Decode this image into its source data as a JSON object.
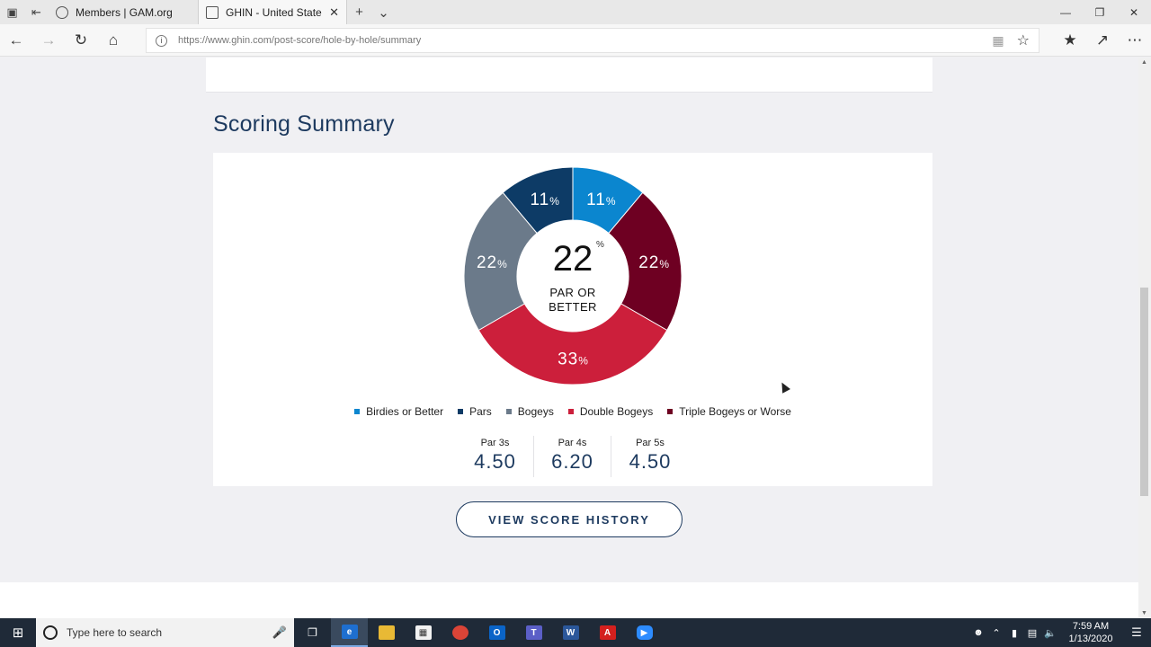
{
  "browser": {
    "tabs": [
      {
        "title": "Members | GAM.org",
        "active": false
      },
      {
        "title": "GHIN - United States Gc",
        "active": true
      }
    ],
    "url": "https://www.ghin.com/post-score/hole-by-hole/summary"
  },
  "page": {
    "section_title": "Scoring Summary",
    "center_value": "22",
    "center_unit": "%",
    "center_label": "PAR OR BETTER",
    "history_button": "VIEW SCORE HISTORY",
    "par_stats": [
      {
        "label": "Par 3s",
        "value": "4.50"
      },
      {
        "label": "Par 4s",
        "value": "6.20"
      },
      {
        "label": "Par 5s",
        "value": "4.50"
      }
    ]
  },
  "chart_data": {
    "type": "pie",
    "categories": [
      "Birdies or Better",
      "Pars",
      "Bogeys",
      "Double Bogeys",
      "Triple Bogeys or Worse"
    ],
    "values": [
      11,
      11,
      22,
      33,
      22
    ],
    "colors": [
      "#0b86cf",
      "#0d3b66",
      "#6b7a8a",
      "#cc1f3b",
      "#6e0022"
    ],
    "segment_order": [
      "Birdies or Better",
      "Triple Bogeys or Worse",
      "Double Bogeys",
      "Bogeys",
      "Pars"
    ],
    "unit": "%",
    "legend_position": "bottom"
  },
  "taskbar": {
    "search_placeholder": "Type here to search",
    "time": "7:59 AM",
    "date": "1/13/2020"
  }
}
